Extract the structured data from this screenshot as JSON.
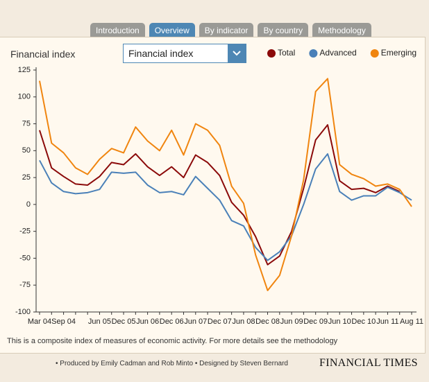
{
  "tabs": [
    "Introduction",
    "Overview",
    "By indicator",
    "By country",
    "Methodology"
  ],
  "active_tab": 1,
  "header": {
    "label": "Financial index",
    "dropdown": "Financial index"
  },
  "chart_data": {
    "type": "line",
    "categories": [
      "Mar 04",
      null,
      "Sep 04",
      null,
      null,
      "Jun 05",
      null,
      "Dec 05",
      null,
      "Jun 06",
      null,
      "Dec 06",
      null,
      "Jun 07",
      null,
      "Dec 07",
      null,
      "Jun 08",
      null,
      "Dec 08",
      null,
      "Jun 09",
      null,
      "Dec 09",
      null,
      "Jun 10",
      null,
      "Dec 10",
      null,
      "Jun 11",
      null,
      "Aug 11"
    ],
    "series": [
      {
        "name": "Total",
        "color": "#8b0a0a",
        "values": [
          69,
          34,
          26,
          19,
          18,
          26,
          39,
          37,
          47,
          35,
          27,
          35,
          25,
          46,
          39,
          27,
          2,
          -10,
          -30,
          -56,
          -48,
          -25,
          15,
          60,
          74,
          22,
          14,
          15,
          11,
          17,
          12,
          null
        ]
      },
      {
        "name": "Advanced",
        "color": "#4a80b8",
        "values": [
          41,
          20,
          12,
          10,
          11,
          14,
          30,
          29,
          30,
          18,
          11,
          12,
          9,
          26,
          15,
          4,
          -15,
          -20,
          -40,
          -52,
          -44,
          -29,
          0,
          33,
          47,
          12,
          4,
          8,
          8,
          16,
          11,
          4
        ]
      },
      {
        "name": "Emerging",
        "color": "#f0850f",
        "values": [
          115,
          57,
          48,
          34,
          28,
          42,
          52,
          48,
          72,
          59,
          50,
          69,
          46,
          75,
          69,
          55,
          17,
          1,
          -47,
          -80,
          -66,
          -29,
          23,
          105,
          117,
          37,
          28,
          24,
          17,
          19,
          14,
          -2
        ]
      }
    ],
    "ylim": [
      -100,
      125
    ],
    "yticks": [
      -100,
      -75,
      -50,
      -25,
      0,
      25,
      50,
      75,
      100,
      125
    ],
    "legend": "top-right"
  },
  "footnote": "This is a composite index of measures of economic activity. For more details see the methodology",
  "credits": "• Produced by Emily Cadman and Rob Minto • Designed by Steven Bernard",
  "logo": "FINANCIAL TIMES"
}
